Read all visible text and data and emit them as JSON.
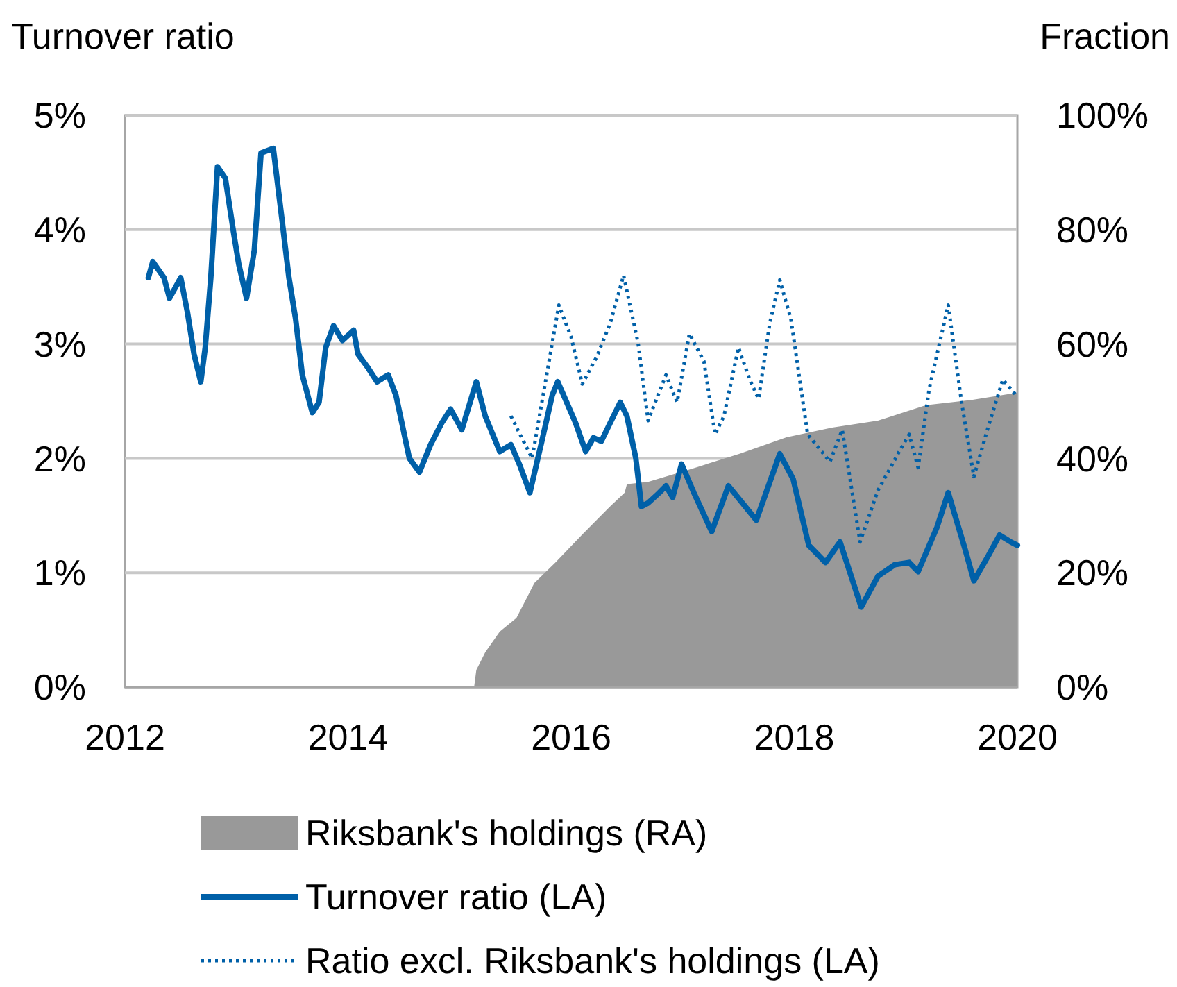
{
  "chart_data": {
    "type": "line",
    "ylabel": "Turnover ratio",
    "y2label": "Fraction",
    "xlim": [
      2012,
      2020
    ],
    "xticks": [
      2012,
      2014,
      2016,
      2018,
      2020
    ],
    "ylim": [
      0,
      5
    ],
    "yticks": [
      {
        "value": 0,
        "label": "0%"
      },
      {
        "value": 1,
        "label": "1%"
      },
      {
        "value": 2,
        "label": "2%"
      },
      {
        "value": 3,
        "label": "3%"
      },
      {
        "value": 4,
        "label": "4%"
      },
      {
        "value": 5,
        "label": "5%"
      }
    ],
    "y2lim": [
      0,
      100
    ],
    "y2ticks": [
      {
        "value": 0,
        "label": "0%"
      },
      {
        "value": 20,
        "label": "20%"
      },
      {
        "value": 40,
        "label": "40%"
      },
      {
        "value": 60,
        "label": "60%"
      },
      {
        "value": 80,
        "label": "80%"
      },
      {
        "value": 100,
        "label": "100%"
      }
    ],
    "grid": "y",
    "legend": "bottom",
    "series": [
      {
        "name": "Riksbank's holdings (RA)",
        "type": "area",
        "axis": "y2",
        "color": "#999999",
        "x": [
          2015.13,
          2015.15,
          2015.23,
          2015.36,
          2015.51,
          2015.67,
          2015.86,
          2016.1,
          2016.35,
          2016.48,
          2016.5,
          2016.69,
          2017.1,
          2017.51,
          2017.93,
          2018.34,
          2018.75,
          2019.18,
          2019.59,
          2020.0
        ],
        "values": [
          0,
          3,
          6.1,
          9.7,
          12.1,
          18.2,
          21.8,
          26.7,
          31.6,
          34,
          35.5,
          35.9,
          38.3,
          40.8,
          43.7,
          45.4,
          46.6,
          49.3,
          50.2,
          51.5
        ]
      },
      {
        "name": "Turnover ratio (LA)",
        "line_style": "solid",
        "color": "#0060a8",
        "x": [
          2012.21,
          2012.25,
          2012.35,
          2012.4,
          2012.5,
          2012.56,
          2012.62,
          2012.68,
          2012.72,
          2012.77,
          2012.83,
          2012.9,
          2012.97,
          2013.02,
          2013.09,
          2013.16,
          2013.22,
          2013.33,
          2013.41,
          2013.47,
          2013.53,
          2013.59,
          2013.68,
          2013.74,
          2013.8,
          2013.87,
          2013.95,
          2014.05,
          2014.09,
          2014.18,
          2014.26,
          2014.36,
          2014.43,
          2014.55,
          2014.64,
          2014.74,
          2014.84,
          2014.92,
          2015.02,
          2015.15,
          2015.23,
          2015.36,
          2015.46,
          2015.54,
          2015.63,
          2015.73,
          2015.83,
          2015.88,
          2015.96,
          2016.04,
          2016.13,
          2016.2,
          2016.27,
          2016.35,
          2016.44,
          2016.5,
          2016.58,
          2016.63,
          2016.69,
          2016.79,
          2016.85,
          2016.91,
          2016.99,
          2017.1,
          2017.26,
          2017.41,
          2017.66,
          2017.87,
          2017.99,
          2018.13,
          2018.28,
          2018.41,
          2018.53,
          2018.6,
          2018.75,
          2018.9,
          2019.03,
          2019.11,
          2019.28,
          2019.38,
          2019.53,
          2019.61,
          2019.74,
          2019.84,
          2019.94,
          2020.0
        ],
        "values": [
          3.58,
          3.72,
          3.58,
          3.4,
          3.58,
          3.28,
          2.91,
          2.67,
          2.97,
          3.58,
          4.55,
          4.45,
          4.0,
          3.7,
          3.4,
          3.82,
          4.67,
          4.71,
          4.07,
          3.58,
          3.22,
          2.73,
          2.4,
          2.49,
          2.97,
          3.16,
          3.03,
          3.12,
          2.91,
          2.79,
          2.67,
          2.73,
          2.55,
          2.0,
          1.88,
          2.12,
          2.31,
          2.43,
          2.25,
          2.67,
          2.37,
          2.06,
          2.12,
          1.94,
          1.7,
          2.12,
          2.55,
          2.67,
          2.49,
          2.31,
          2.06,
          2.18,
          2.15,
          2.31,
          2.49,
          2.37,
          2.0,
          1.58,
          1.61,
          1.7,
          1.76,
          1.66,
          1.95,
          1.7,
          1.36,
          1.76,
          1.46,
          2.04,
          1.82,
          1.24,
          1.09,
          1.27,
          0.91,
          0.7,
          0.97,
          1.07,
          1.09,
          1.01,
          1.4,
          1.7,
          1.21,
          0.93,
          1.15,
          1.33,
          1.27,
          1.24
        ]
      },
      {
        "name": "Ratio excl. Riksbank's holdings (LA)",
        "line_style": "dotted",
        "color": "#0060a8",
        "x": [
          2015.46,
          2015.65,
          2015.89,
          2016.0,
          2016.1,
          2016.23,
          2016.35,
          2016.47,
          2016.6,
          2016.69,
          2016.85,
          2016.95,
          2017.06,
          2017.19,
          2017.29,
          2017.37,
          2017.5,
          2017.6,
          2017.68,
          2017.78,
          2017.87,
          2017.97,
          2018.12,
          2018.32,
          2018.43,
          2018.59,
          2018.75,
          2018.93,
          2019.03,
          2019.11,
          2019.21,
          2019.38,
          2019.5,
          2019.61,
          2019.74,
          2019.87,
          2019.99
        ],
        "values": [
          2.37,
          2.0,
          3.34,
          3.06,
          2.65,
          2.89,
          3.18,
          3.6,
          3.01,
          2.33,
          2.73,
          2.49,
          3.09,
          2.85,
          2.21,
          2.37,
          2.97,
          2.69,
          2.52,
          3.18,
          3.56,
          3.22,
          2.21,
          1.97,
          2.25,
          1.27,
          1.72,
          2.04,
          2.21,
          1.92,
          2.61,
          3.34,
          2.49,
          1.84,
          2.28,
          2.69,
          2.55
        ]
      }
    ]
  }
}
